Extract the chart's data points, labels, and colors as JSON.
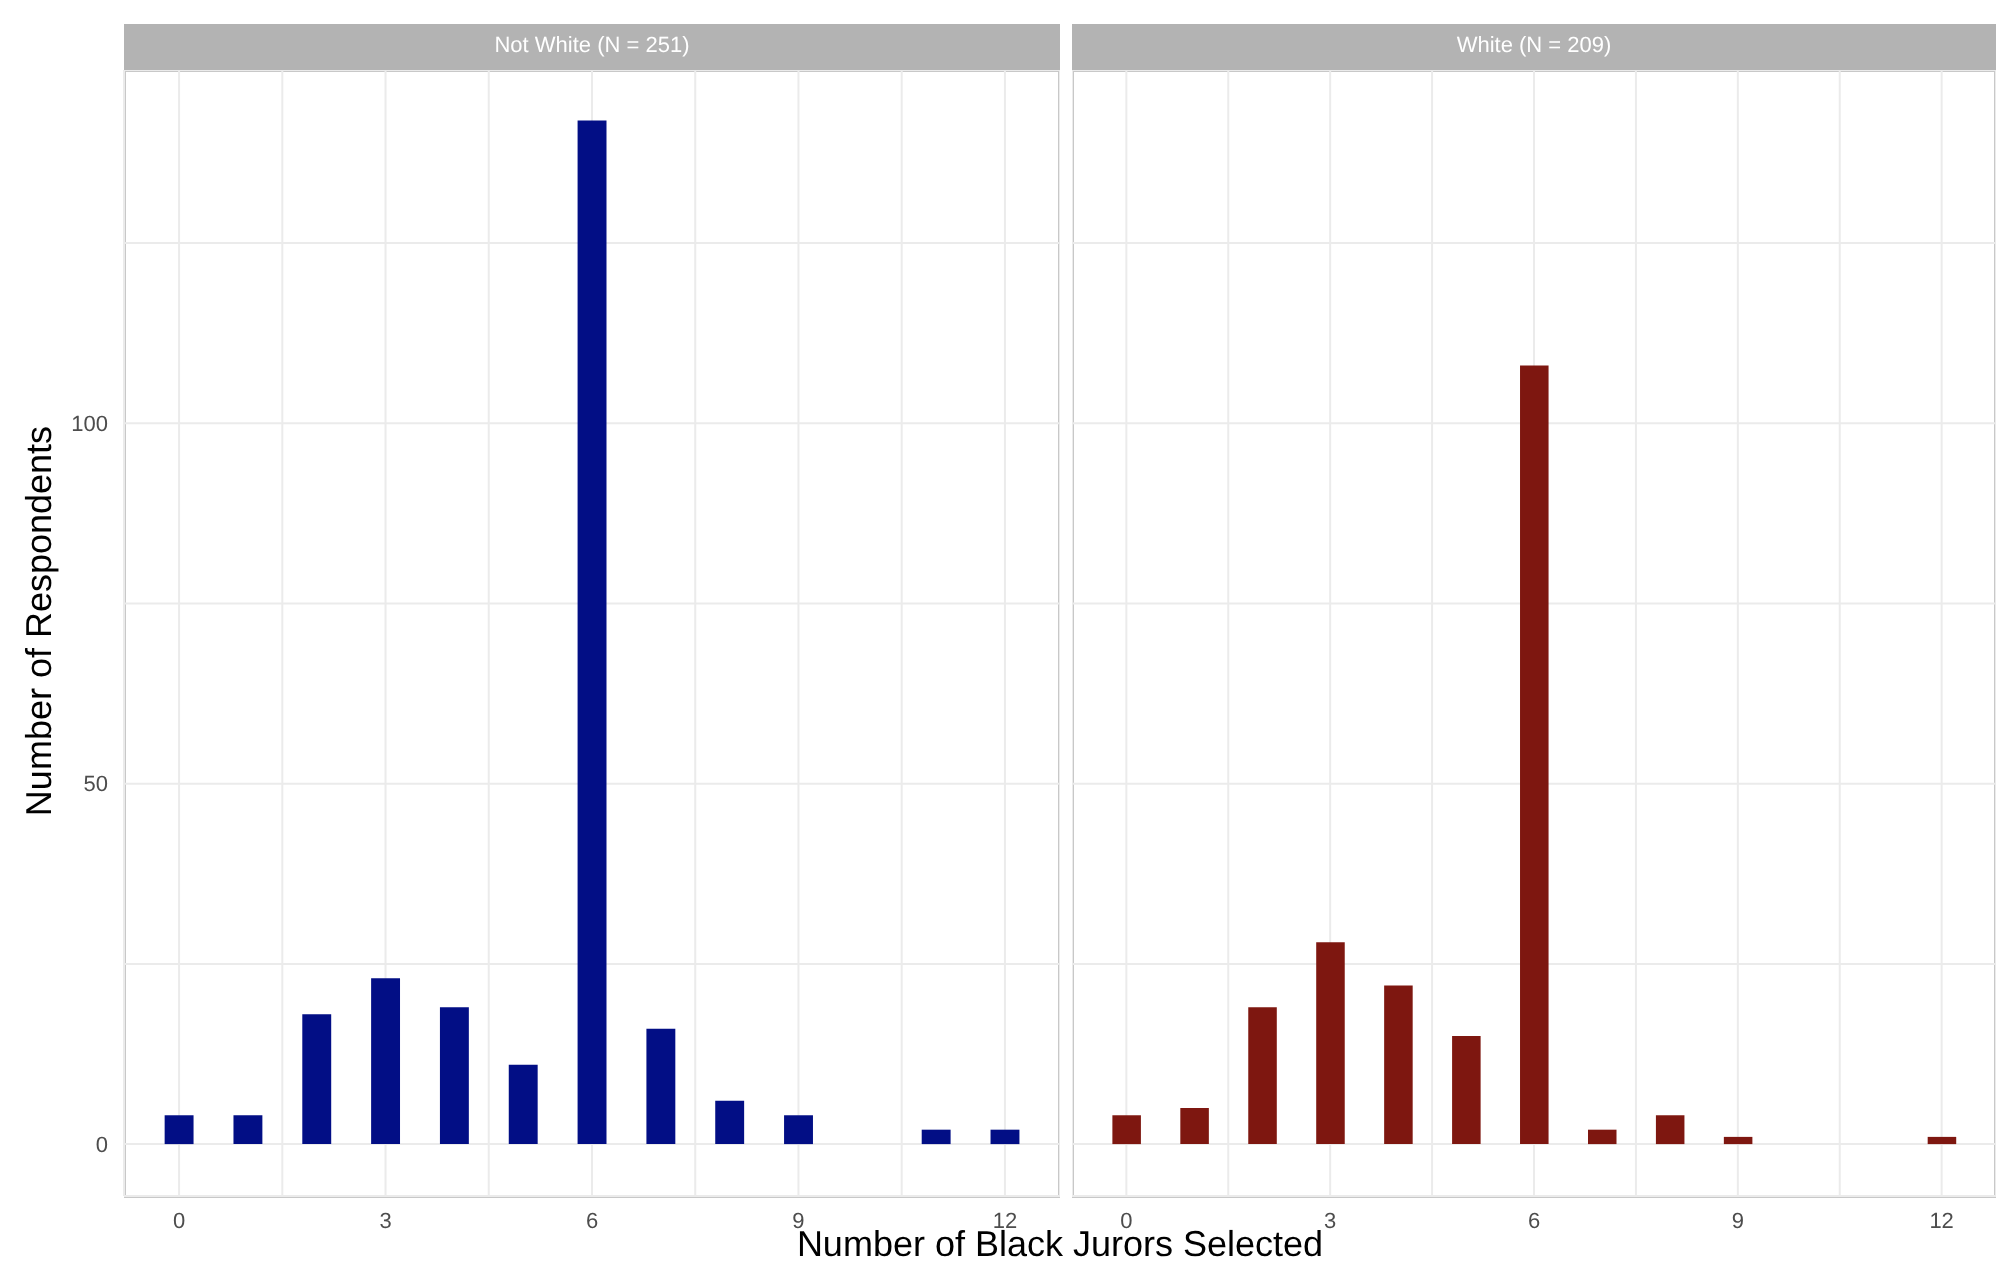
{
  "chart_data": [
    {
      "type": "bar",
      "title": "Not White (N = 251)",
      "xlabel": "Number of Black Jurors Selected",
      "ylabel": "Number of Respondents",
      "x": [
        0,
        1,
        2,
        3,
        4,
        5,
        6,
        7,
        8,
        9,
        11,
        12
      ],
      "series": [
        {
          "color": "#020e85",
          "values": [
            4,
            4,
            18,
            23,
            19,
            11,
            142,
            16,
            6,
            4,
            2,
            2
          ]
        }
      ],
      "xlim": [
        -0.8,
        12.8
      ],
      "xticks": [
        0,
        {
          "value": 1.5,
          "label": null
        },
        3,
        {
          "value": 4.5,
          "label": null
        },
        6,
        {
          "value": 7.5,
          "label": null
        },
        9,
        {
          "value": 10.5,
          "label": null
        },
        12
      ],
      "ylim": [
        -7.2,
        149
      ],
      "yticks": [
        0,
        {
          "value": 25,
          "label": null
        },
        50,
        {
          "value": 75,
          "label": null
        },
        100,
        {
          "value": 125,
          "label": null
        }
      ],
      "grid": true,
      "legend": false
    },
    {
      "type": "bar",
      "title": "White (N = 209)",
      "x": [
        0,
        1,
        2,
        3,
        4,
        5,
        6,
        7,
        8,
        9,
        12
      ],
      "series": [
        {
          "color": "#7e1710",
          "values": [
            4,
            5,
            19,
            28,
            22,
            15,
            108,
            2,
            4,
            1,
            1
          ]
        }
      ],
      "xlim": [
        -0.8,
        12.8
      ],
      "xticks": [
        0,
        {
          "value": 1.5,
          "label": null
        },
        3,
        {
          "value": 4.5,
          "label": null
        },
        6,
        {
          "value": 7.5,
          "label": null
        },
        9,
        {
          "value": 10.5,
          "label": null
        },
        12
      ],
      "ylim": [
        -7.2,
        149
      ],
      "yticks": [
        0,
        {
          "value": 25,
          "label": null
        },
        50,
        {
          "value": 75,
          "label": null
        },
        100,
        {
          "value": 125,
          "label": null
        }
      ],
      "grid": true,
      "legend": false,
      "tick_labels": "x"
    }
  ]
}
